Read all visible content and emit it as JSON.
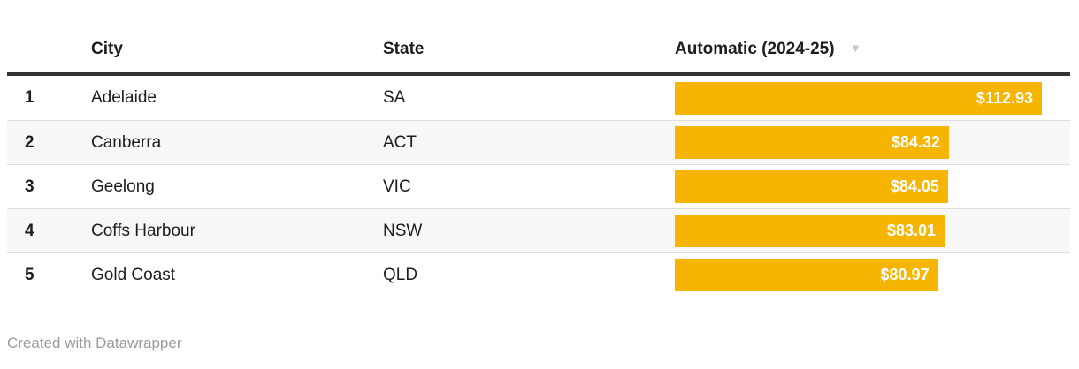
{
  "colors": {
    "bar": "#F5B502",
    "header_border": "#333333",
    "row_divider": "#dddddd",
    "stripe": "#f7f7f7",
    "text": "#1d1d1d",
    "bar_label": "#ffffff",
    "sort_icon": "#c5c5c5",
    "footer_text": "#9b9b9b"
  },
  "header": {
    "rank_label": "",
    "city_label": "City",
    "state_label": "State",
    "value_label": "Automatic (2024-25)",
    "sort_icon_glyph": "▼"
  },
  "chart_data": {
    "type": "table",
    "columns": [
      "",
      "City",
      "State",
      "Automatic (2024-25)"
    ],
    "sorted_column": "Automatic (2024-25)",
    "sort_direction": "descending",
    "bar_column_max": 112.93,
    "rows": [
      {
        "rank": "1",
        "city": "Adelaide",
        "state": "SA",
        "value": 112.93,
        "value_label": "$112.93"
      },
      {
        "rank": "2",
        "city": "Canberra",
        "state": "ACT",
        "value": 84.32,
        "value_label": "$84.32"
      },
      {
        "rank": "3",
        "city": "Geelong",
        "state": "VIC",
        "value": 84.05,
        "value_label": "$84.05"
      },
      {
        "rank": "4",
        "city": "Coffs Harbour",
        "state": "NSW",
        "value": 83.01,
        "value_label": "$83.01"
      },
      {
        "rank": "5",
        "city": "Gold Coast",
        "state": "QLD",
        "value": 80.97,
        "value_label": "$80.97"
      }
    ]
  },
  "footer": {
    "credit": "Created with Datawrapper"
  }
}
